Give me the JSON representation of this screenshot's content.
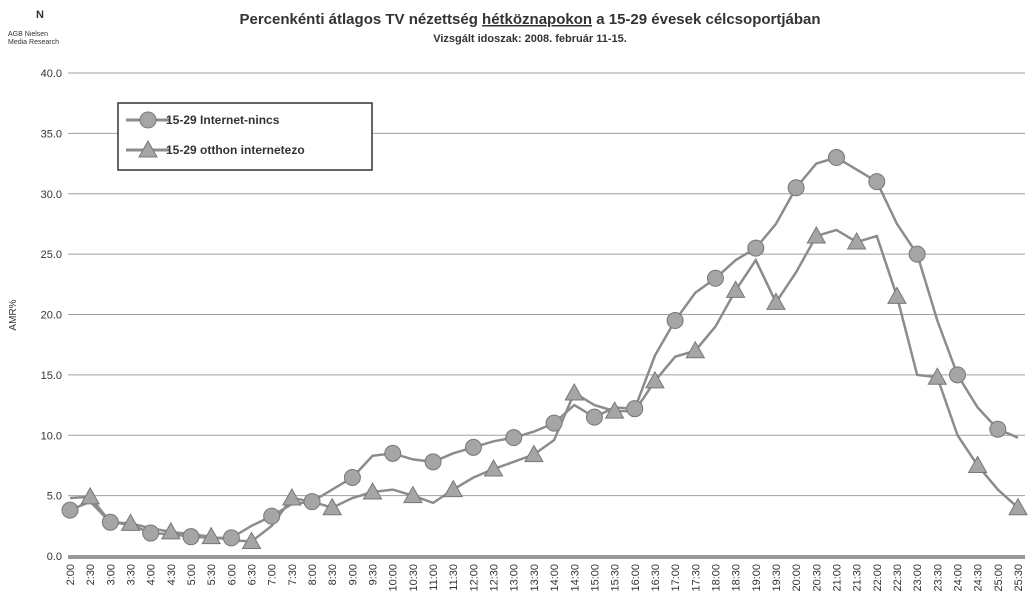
{
  "logo": [
    "AGB Nielsen",
    "Media Research"
  ],
  "chart_data": {
    "type": "line",
    "title": [
      "Percenkénti átlagos TV nézettség ",
      "hétköznapokon",
      " a 15-29 évesek célcsoportjában"
    ],
    "subtitle": "Vizsgált idoszak: 2008. február 11-15.",
    "y_label": "AMR%",
    "categories": [
      "2:00",
      "2:30",
      "3:00",
      "3:30",
      "4:00",
      "4:30",
      "5:00",
      "5:30",
      "6:00",
      "6:30",
      "7:00",
      "7:30",
      "8:00",
      "8:30",
      "9:00",
      "9:30",
      "10:00",
      "10:30",
      "11:00",
      "11:30",
      "12:00",
      "12:30",
      "13:00",
      "13:30",
      "14:00",
      "14:30",
      "15:00",
      "15:30",
      "16:00",
      "16:30",
      "17:00",
      "17:30",
      "18:00",
      "18:30",
      "19:00",
      "19:30",
      "20:00",
      "20:30",
      "21:00",
      "21:30",
      "22:00",
      "22:30",
      "23:00",
      "23:30",
      "24:00",
      "24:30",
      "25:00",
      "25:30"
    ],
    "series": [
      {
        "name": "15-29 Internet-nincs",
        "color": "#8c8c8c",
        "marker": "circle",
        "values": [
          3.8,
          4.5,
          2.8,
          2.6,
          1.9,
          1.8,
          1.6,
          1.5,
          1.5,
          2.5,
          3.3,
          4.3,
          4.5,
          5.5,
          6.5,
          8.3,
          8.5,
          8.0,
          7.8,
          8.5,
          9.0,
          9.5,
          9.8,
          10.3,
          11.0,
          12.5,
          11.5,
          12.3,
          12.2,
          16.6,
          19.5,
          21.8,
          23.0,
          24.5,
          25.5,
          27.5,
          30.5,
          32.5,
          33.0,
          32.0,
          31.0,
          27.5,
          25.0,
          19.5,
          15.0,
          12.3,
          10.5,
          9.8
        ]
      },
      {
        "name": "15-29 otthon internetezo",
        "color": "#8c8c8c",
        "marker": "triangle",
        "values": [
          4.8,
          4.9,
          2.8,
          2.7,
          2.3,
          2.0,
          1.8,
          1.6,
          1.3,
          1.2,
          2.5,
          4.8,
          4.5,
          4.0,
          4.8,
          5.3,
          5.5,
          5.0,
          4.4,
          5.5,
          6.5,
          7.2,
          7.8,
          8.4,
          9.6,
          13.5,
          12.5,
          12.0,
          12.0,
          14.5,
          16.5,
          17.0,
          19.0,
          22.0,
          24.5,
          21.0,
          23.5,
          26.5,
          27.0,
          26.0,
          26.5,
          21.5,
          15.0,
          14.8,
          10.0,
          7.5,
          5.5,
          4.0
        ]
      }
    ],
    "ylim": [
      0,
      40
    ],
    "yticks": [
      {
        "value": 0,
        "label": "0.0"
      },
      {
        "value": 5,
        "label": "5.0"
      },
      {
        "value": 10,
        "label": "10.0"
      },
      {
        "value": 15,
        "label": "15.0"
      },
      {
        "value": 20,
        "label": "20.0"
      },
      {
        "value": 25,
        "label": "25.0"
      },
      {
        "value": 30,
        "label": "30.0"
      },
      {
        "value": 35,
        "label": "35.0"
      },
      {
        "value": 40,
        "label": "40.0"
      }
    ],
    "grid": true
  }
}
